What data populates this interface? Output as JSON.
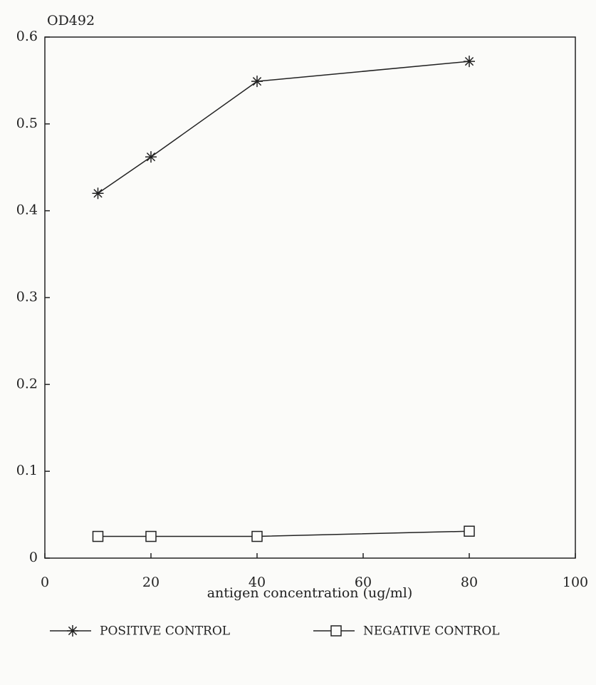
{
  "chart_data": {
    "type": "line",
    "y_label": "OD492",
    "x_label": "antigen concentration (ug/ml)",
    "x": [
      10,
      20,
      40,
      80
    ],
    "series": [
      {
        "name": "POSITIVE CONTROL",
        "color": "#222222",
        "marker": "asterisk",
        "values": [
          0.42,
          0.462,
          0.549,
          0.572
        ]
      },
      {
        "name": "NEGATIVE CONTROL",
        "color": "#222222",
        "marker": "square",
        "values": [
          0.025,
          0.025,
          0.025,
          0.031
        ]
      }
    ],
    "xlim": [
      0,
      100
    ],
    "xticks": [
      0,
      20,
      40,
      60,
      80,
      100
    ],
    "ylim": [
      0,
      0.6
    ],
    "yticks": [
      0,
      0.1,
      0.2,
      0.3,
      0.4,
      0.5,
      0.6
    ],
    "legend": "bottom"
  }
}
